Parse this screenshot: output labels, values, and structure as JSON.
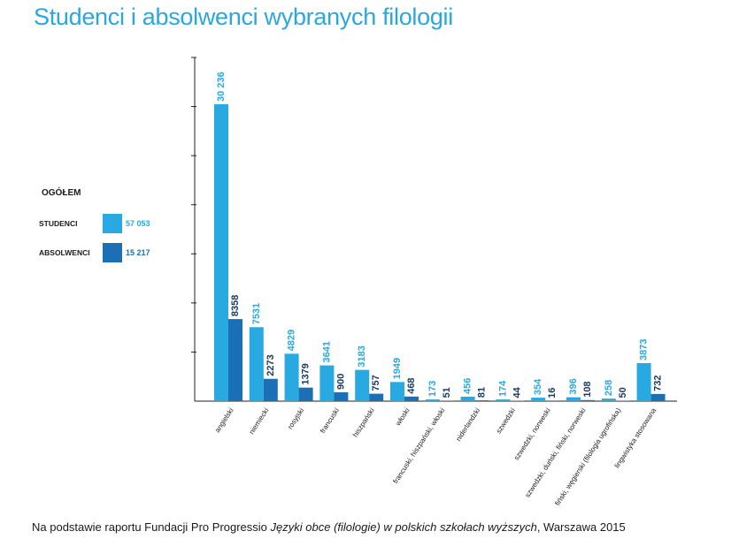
{
  "title": "Studenci i absolwenci wybranych filologii",
  "colors": {
    "studenci": "#29a9e1",
    "absolwenci": "#1a6fb5",
    "title": "#2aa7df"
  },
  "legend": {
    "title": "OGÓŁEM",
    "items": [
      {
        "label": "STUDENCI",
        "value": "57 053",
        "color": "#29a9e1"
      },
      {
        "label": "ABSOLWENCI",
        "value": "15 217",
        "color": "#1a6fb5"
      }
    ]
  },
  "source": {
    "prefix": "Na podstawie raportu Fundacji Pro Progressio ",
    "italic": "Języki obce (filologie) w polskich szkołach wyższych",
    "suffix": ", Warszawa 2015"
  },
  "chart_data": {
    "type": "bar",
    "title": "Studenci i absolwenci wybranych filologii",
    "xlabel": "",
    "ylabel": "",
    "ylim": [
      0,
      35000
    ],
    "grid": false,
    "legend_position": "left",
    "categories": [
      "angielski",
      "niemiecki",
      "rosyjski",
      "francuski",
      "hiszpański",
      "włoski",
      "francuski, hiszpański, włoski",
      "niderlandzki",
      "szwedzki",
      "szwedzki, norweski",
      "szwedzki, duński, fiński, norweski",
      "fiński, węgierski (filologia ugrofińska)",
      "lingwistyka stosowana"
    ],
    "series": [
      {
        "name": "STUDENCI",
        "values": [
          30236,
          7531,
          4829,
          3641,
          3183,
          1949,
          173,
          456,
          174,
          354,
          396,
          258,
          3873
        ],
        "labels": [
          "30 236",
          "7531",
          "4829",
          "3641",
          "3183",
          "1949",
          "173",
          "456",
          "174",
          "354",
          "396",
          "258",
          "3873"
        ]
      },
      {
        "name": "ABSOLWENCI",
        "values": [
          8358,
          2273,
          1379,
          900,
          757,
          468,
          51,
          81,
          44,
          16,
          108,
          50,
          732
        ],
        "labels": [
          "8358",
          "2273",
          "1379",
          "900",
          "757",
          "468",
          "51",
          "81",
          "44",
          "16",
          "108",
          "50",
          "732"
        ]
      }
    ]
  }
}
